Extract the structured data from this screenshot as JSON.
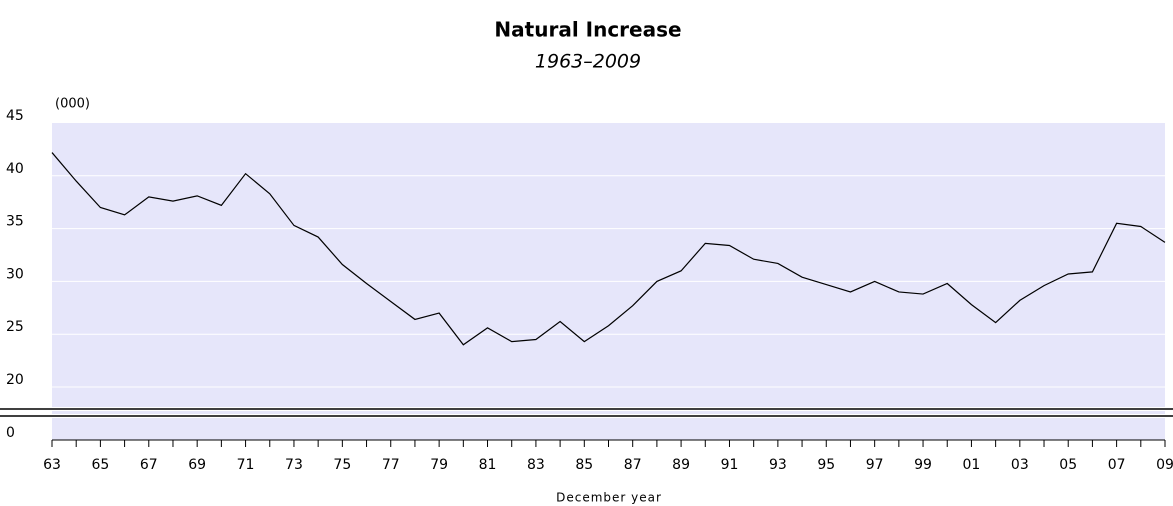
{
  "chart_data": {
    "type": "line",
    "title": "Natural Increase",
    "subtitle": "1963–2009",
    "y_unit_label": "(000)",
    "x_label": "December year",
    "categories": [
      "63",
      null,
      "65",
      null,
      "67",
      null,
      "69",
      null,
      "71",
      null,
      "73",
      null,
      "75",
      null,
      "77",
      null,
      "79",
      null,
      "81",
      null,
      "83",
      null,
      "85",
      null,
      "87",
      null,
      "89",
      null,
      "91",
      null,
      "93",
      null,
      "95",
      null,
      "97",
      null,
      "99",
      null,
      "01",
      null,
      "03",
      null,
      "05",
      null,
      "07",
      null,
      "09"
    ],
    "series": [
      {
        "name": "Natural Increase",
        "color": "#000000",
        "values": [
          42.2,
          39.5,
          37.0,
          36.3,
          38.0,
          37.6,
          38.1,
          37.2,
          40.2,
          38.3,
          35.3,
          34.2,
          31.6,
          29.8,
          28.1,
          26.4,
          27.0,
          24.0,
          25.6,
          24.3,
          24.5,
          26.2,
          24.3,
          25.8,
          27.7,
          30.0,
          31.0,
          33.6,
          33.4,
          32.1,
          31.7,
          30.4,
          29.7,
          29.0,
          30.0,
          29.0,
          28.8,
          29.8,
          27.8,
          26.1,
          28.2,
          29.6,
          30.7,
          30.9,
          35.5,
          35.2,
          33.7
        ]
      }
    ],
    "ylim": [
      0,
      45
    ],
    "yticks": [
      0,
      20,
      25,
      30,
      35,
      40,
      45
    ],
    "y_axis_break": true,
    "grid": true,
    "plot_background": "#e6e6fa"
  }
}
